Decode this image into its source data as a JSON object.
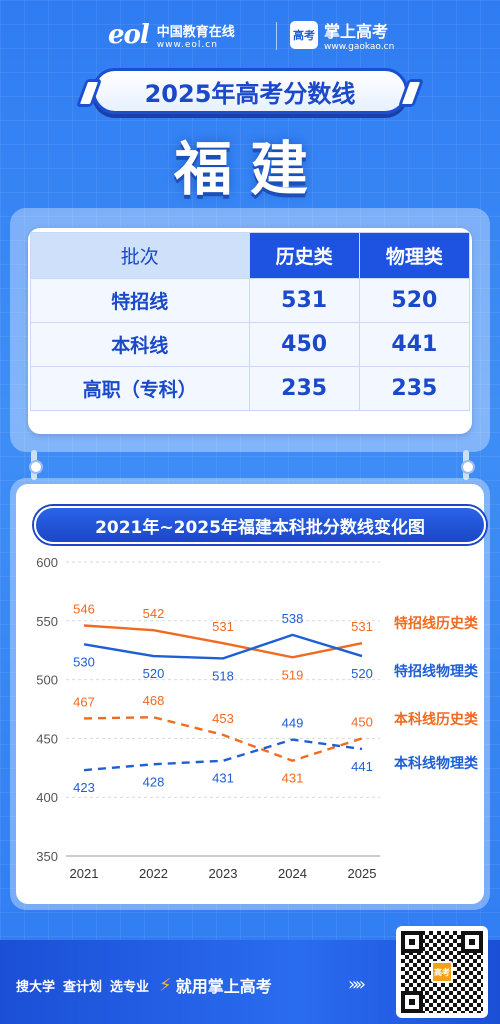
{
  "header": {
    "eol_name": "中国教育在线",
    "eol_url": "www.eol.cn",
    "eol_mark": "eol",
    "gk_name": "掌上高考",
    "gk_url": "www.gaokao.cn",
    "gk_icon_text": "高考"
  },
  "title": "2025年高考分数线",
  "province": "福建",
  "table": {
    "headers": [
      "批次",
      "历史类",
      "物理类"
    ],
    "rows": [
      {
        "label": "特招线",
        "history": "531",
        "physics": "520"
      },
      {
        "label": "本科线",
        "history": "450",
        "physics": "441"
      },
      {
        "label": "高职（专科）",
        "history": "235",
        "physics": "235"
      }
    ]
  },
  "chart_title": "2021年~2025年福建本科批分数线变化图",
  "chart_data": {
    "type": "line",
    "x": [
      "2021",
      "2022",
      "2023",
      "2024",
      "2025"
    ],
    "ylim": [
      350,
      600
    ],
    "yticks": [
      350,
      400,
      450,
      500,
      550,
      600
    ],
    "grid": true,
    "legend_position": "right",
    "series": [
      {
        "name": "特招线历史类",
        "values": [
          546,
          542,
          531,
          519,
          531
        ],
        "color": "#f06a1f",
        "dash": false
      },
      {
        "name": "特招线物理类",
        "values": [
          530,
          520,
          518,
          538,
          520
        ],
        "color": "#1f5fd6",
        "dash": false
      },
      {
        "name": "本科线历史类",
        "values": [
          467,
          468,
          453,
          431,
          450
        ],
        "color": "#f06a1f",
        "dash": true
      },
      {
        "name": "本科线物理类",
        "values": [
          423,
          428,
          431,
          449,
          441
        ],
        "color": "#1f5fd6",
        "dash": true
      }
    ]
  },
  "footer": {
    "items": [
      "搜大学",
      "查计划",
      "选专业"
    ],
    "slogan": "就用掌上高考",
    "arrows": "»»",
    "qr_badge": "高考"
  },
  "colors": {
    "accent": "#1d53e0",
    "orange": "#f06a1f",
    "blue": "#1f5fd6"
  }
}
